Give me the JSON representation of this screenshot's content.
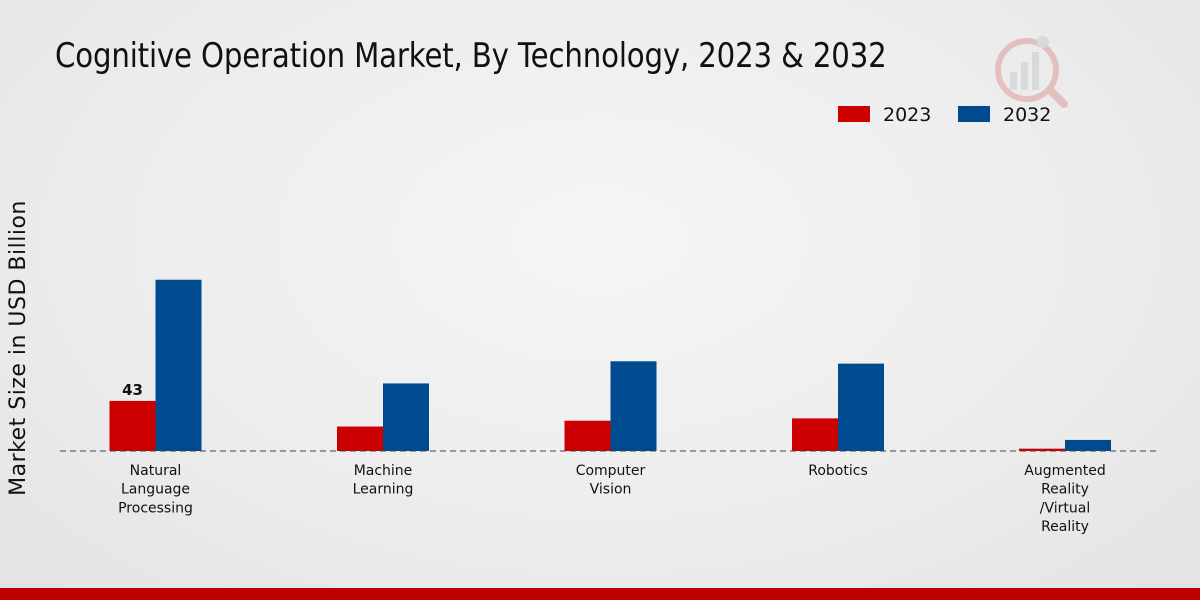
{
  "chart_data": {
    "type": "bar",
    "title": "Cognitive Operation Market, By Technology, 2023 & 2032",
    "xlabel": "",
    "ylabel": "Market Size in USD Billion",
    "categories": [
      "Natural Language Processing",
      "Machine Learning",
      "Computer Vision",
      "Robotics",
      "Augmented Reality /Virtual Reality"
    ],
    "category_lines": [
      [
        "Natural",
        "Language",
        "Processing"
      ],
      [
        "Machine",
        "Learning"
      ],
      [
        "Computer",
        "Vision"
      ],
      [
        "Robotics"
      ],
      [
        "Augmented",
        "Reality",
        "/Virtual",
        "Reality"
      ]
    ],
    "series": [
      {
        "name": "2023",
        "color": "#cc0000",
        "values": [
          43,
          21,
          26,
          28,
          2
        ]
      },
      {
        "name": "2032",
        "color": "#004a8f",
        "values": [
          147,
          58,
          77,
          75,
          9.5
        ]
      }
    ],
    "data_labels": [
      {
        "series": 0,
        "index": 0,
        "text": "43"
      }
    ],
    "ylim": [
      0,
      200
    ],
    "grid": false,
    "legend_position": "top-right",
    "baseline_style": "dashed"
  },
  "logo": {
    "name": "watermark-logo"
  }
}
